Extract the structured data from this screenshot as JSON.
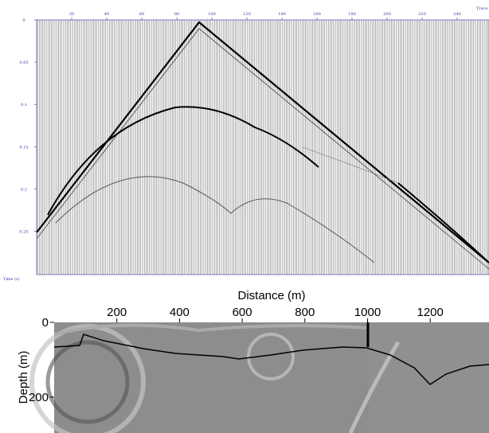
{
  "top_panel": {
    "x_label": "Trace",
    "y_label": "Time (s)",
    "xticks": [
      20,
      40,
      60,
      80,
      100,
      120,
      140,
      160,
      180,
      200,
      220,
      240
    ],
    "yticks": [
      0,
      0.05,
      0.1,
      0.15,
      0.2,
      0.25
    ]
  },
  "bottom_panel": {
    "x_label": "Distance (m)",
    "y_label": "Depth (m)",
    "xticks": [
      200,
      400,
      600,
      800,
      1000,
      1200
    ],
    "yticks": [
      0,
      200
    ]
  }
}
